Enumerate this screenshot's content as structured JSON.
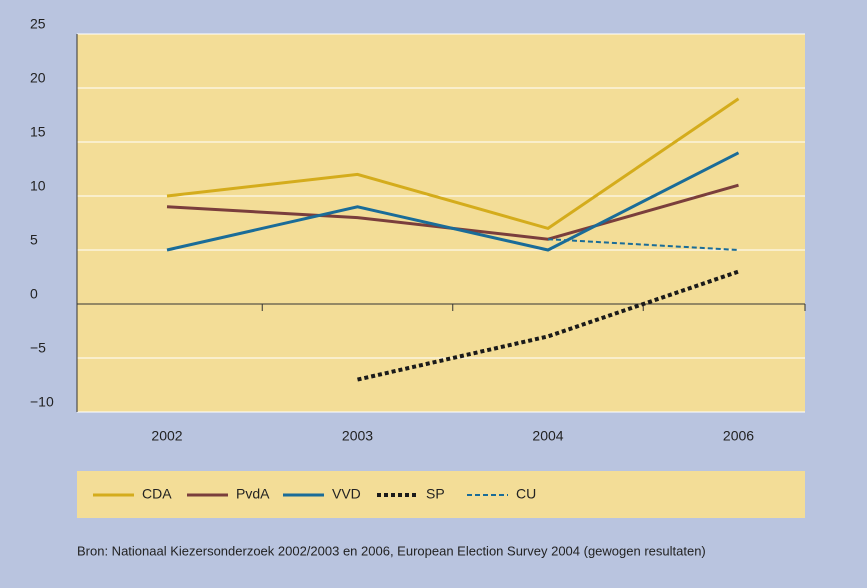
{
  "chart_data": {
    "type": "line",
    "categories": [
      "2002",
      "2003",
      "2004",
      "2006"
    ],
    "series": [
      {
        "name": "CDA",
        "color": "#d4ac1c",
        "values": [
          10,
          12,
          7,
          19
        ]
      },
      {
        "name": "PvdA",
        "color": "#7a3e3c",
        "values": [
          9,
          8,
          6,
          11
        ]
      },
      {
        "name": "VVD",
        "color": "#1a6c98",
        "values": [
          5,
          9,
          5,
          14
        ]
      },
      {
        "name": "SP",
        "color": "#1a1a1a",
        "values": [
          null,
          -7,
          -3,
          3
        ]
      },
      {
        "name": "CU",
        "color": "#1a6c98",
        "values": [
          null,
          null,
          6,
          5
        ]
      }
    ],
    "ylim": [
      -10,
      25
    ],
    "yticks": [
      {
        "value": -10,
        "label": "−10"
      },
      {
        "value": -5,
        "label": "−5"
      },
      0,
      5,
      10,
      15,
      20,
      25
    ],
    "grid": true,
    "source": "Bron: Nationaal Kiezersonderzoek 2002/2003 en 2006, European Election Survey 2004 (gewogen resultaten)"
  }
}
